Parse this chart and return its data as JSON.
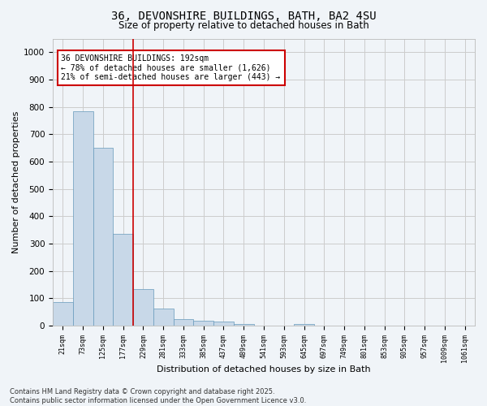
{
  "title_line1": "36, DEVONSHIRE BUILDINGS, BATH, BA2 4SU",
  "title_line2": "Size of property relative to detached houses in Bath",
  "xlabel": "Distribution of detached houses by size in Bath",
  "ylabel": "Number of detached properties",
  "bar_color": "#c8d8e8",
  "bar_edge_color": "#6699bb",
  "bar_edge_width": 0.5,
  "grid_color": "#cccccc",
  "background_color": "#f0f4f8",
  "categories": [
    "21sqm",
    "73sqm",
    "125sqm",
    "177sqm",
    "229sqm",
    "281sqm",
    "333sqm",
    "385sqm",
    "437sqm",
    "489sqm",
    "541sqm",
    "593sqm",
    "645sqm",
    "697sqm",
    "749sqm",
    "801sqm",
    "853sqm",
    "905sqm",
    "957sqm",
    "1009sqm",
    "1061sqm"
  ],
  "values": [
    85,
    785,
    650,
    335,
    135,
    62,
    25,
    17,
    14,
    5,
    0,
    0,
    7,
    0,
    0,
    0,
    0,
    0,
    0,
    0,
    0
  ],
  "vline_color": "#cc0000",
  "annotation_text": "36 DEVONSHIRE BUILDINGS: 192sqm\n← 78% of detached houses are smaller (1,626)\n21% of semi-detached houses are larger (443) →",
  "annotation_box_color": "#ffffff",
  "annotation_box_edge_color": "#cc0000",
  "footnote": "Contains HM Land Registry data © Crown copyright and database right 2025.\nContains public sector information licensed under the Open Government Licence v3.0.",
  "ylim": [
    0,
    1050
  ],
  "yticks": [
    0,
    100,
    200,
    300,
    400,
    500,
    600,
    700,
    800,
    900,
    1000
  ]
}
